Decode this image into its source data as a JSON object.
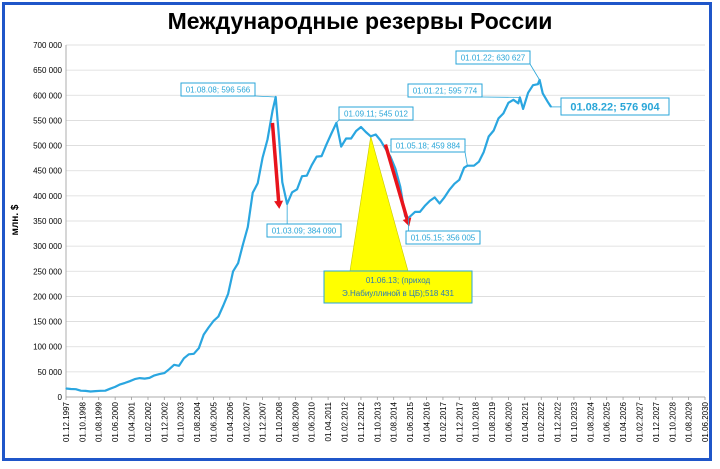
{
  "chart_data": {
    "type": "line",
    "title": "Международные резервы России",
    "ylabel": "млн. $",
    "xlabel": "",
    "ylim": [
      0,
      700000
    ],
    "grid": true,
    "y_ticks": [
      "0",
      "50 000",
      "100 000",
      "150 000",
      "200 000",
      "250 000",
      "300 000",
      "350 000",
      "400 000",
      "450 000",
      "500 000",
      "550 000",
      "600 000",
      "650 000",
      "700 000"
    ],
    "x_ticks": [
      "01.12.1997",
      "01.10.1998",
      "01.08.1999",
      "01.06.2000",
      "01.04.2001",
      "01.02.2002",
      "01.12.2002",
      "01.10.2003",
      "01.08.2004",
      "01.06.2005",
      "01.04.2006",
      "01.02.2007",
      "01.12.2007",
      "01.10.2008",
      "01.08.2009",
      "01.06.2010",
      "01.04.2011",
      "01.02.2012",
      "01.12.2012",
      "01.10.2013",
      "01.08.2014",
      "01.06.2015",
      "01.04.2016",
      "01.02.2017",
      "01.12.2017",
      "01.10.2018",
      "01.08.2019",
      "01.06.2020",
      "01.04.2021",
      "01.02.2022",
      "01.12.2022",
      "01.10.2023",
      "01.08.2024",
      "01.06.2025",
      "01.04.2026",
      "01.02.2027",
      "01.12.2027",
      "01.10.2028",
      "01.08.2029",
      "01.06.2030"
    ],
    "series": [
      {
        "color": "#2aa6e0",
        "points": [
          [
            "1997-12-01",
            17000
          ],
          [
            "1998-03-01",
            16000
          ],
          [
            "1998-06-01",
            15500
          ],
          [
            "1998-09-01",
            12500
          ],
          [
            "1998-12-01",
            12200
          ],
          [
            "1999-03-01",
            11000
          ],
          [
            "1999-06-01",
            11800
          ],
          [
            "1999-09-01",
            12300
          ],
          [
            "1999-12-01",
            12500
          ],
          [
            "2000-03-01",
            16500
          ],
          [
            "2000-06-01",
            20000
          ],
          [
            "2000-09-01",
            25000
          ],
          [
            "2000-12-01",
            28000
          ],
          [
            "2001-03-01",
            31500
          ],
          [
            "2001-06-01",
            35500
          ],
          [
            "2001-09-01",
            37500
          ],
          [
            "2001-12-01",
            36500
          ],
          [
            "2002-03-01",
            38000
          ],
          [
            "2002-06-01",
            43000
          ],
          [
            "2002-09-01",
            45500
          ],
          [
            "2002-12-01",
            47500
          ],
          [
            "2003-03-01",
            55000
          ],
          [
            "2003-06-01",
            64000
          ],
          [
            "2003-09-01",
            62000
          ],
          [
            "2003-12-01",
            77000
          ],
          [
            "2004-03-01",
            85000
          ],
          [
            "2004-06-01",
            86000
          ],
          [
            "2004-09-01",
            97000
          ],
          [
            "2004-12-01",
            124000
          ],
          [
            "2005-03-01",
            138000
          ],
          [
            "2005-06-01",
            151000
          ],
          [
            "2005-09-01",
            160000
          ],
          [
            "2005-12-01",
            182000
          ],
          [
            "2006-03-01",
            205000
          ],
          [
            "2006-06-01",
            250000
          ],
          [
            "2006-09-01",
            266000
          ],
          [
            "2006-12-01",
            303000
          ],
          [
            "2007-03-01",
            338000
          ],
          [
            "2007-06-01",
            406000
          ],
          [
            "2007-09-01",
            425000
          ],
          [
            "2007-12-01",
            476000
          ],
          [
            "2008-03-01",
            512000
          ],
          [
            "2008-06-01",
            569000
          ],
          [
            "2008-08-01",
            596566
          ],
          [
            "2008-10-01",
            516000
          ],
          [
            "2008-12-01",
            427000
          ],
          [
            "2009-03-01",
            384090
          ],
          [
            "2009-06-01",
            407000
          ],
          [
            "2009-09-01",
            413000
          ],
          [
            "2009-12-01",
            439000
          ],
          [
            "2010-03-01",
            440000
          ],
          [
            "2010-06-01",
            461000
          ],
          [
            "2010-09-01",
            478000
          ],
          [
            "2010-12-01",
            479000
          ],
          [
            "2011-03-01",
            502000
          ],
          [
            "2011-06-01",
            524000
          ],
          [
            "2011-09-01",
            545012
          ],
          [
            "2011-12-01",
            498000
          ],
          [
            "2012-03-01",
            514000
          ],
          [
            "2012-06-01",
            514000
          ],
          [
            "2012-09-01",
            529000
          ],
          [
            "2012-12-01",
            537000
          ],
          [
            "2013-03-01",
            527000
          ],
          [
            "2013-06-01",
            518431
          ],
          [
            "2013-09-01",
            522000
          ],
          [
            "2013-12-01",
            510000
          ],
          [
            "2014-03-01",
            494000
          ],
          [
            "2014-06-01",
            478000
          ],
          [
            "2014-09-01",
            454000
          ],
          [
            "2014-12-01",
            418000
          ],
          [
            "2015-03-01",
            360000
          ],
          [
            "2015-05-01",
            356005
          ],
          [
            "2015-09-01",
            368000
          ],
          [
            "2015-12-01",
            368000
          ],
          [
            "2016-03-01",
            380000
          ],
          [
            "2016-06-01",
            390000
          ],
          [
            "2016-09-01",
            397000
          ],
          [
            "2016-12-01",
            385000
          ],
          [
            "2017-03-01",
            397000
          ],
          [
            "2017-06-01",
            412000
          ],
          [
            "2017-09-01",
            424000
          ],
          [
            "2017-12-01",
            432000
          ],
          [
            "2018-03-01",
            456000
          ],
          [
            "2018-05-01",
            459884
          ],
          [
            "2018-09-01",
            460000
          ],
          [
            "2018-12-01",
            468000
          ],
          [
            "2019-03-01",
            487000
          ],
          [
            "2019-06-01",
            518000
          ],
          [
            "2019-09-01",
            530000
          ],
          [
            "2019-12-01",
            554000
          ],
          [
            "2020-03-01",
            564000
          ],
          [
            "2020-06-01",
            585000
          ],
          [
            "2020-09-01",
            591000
          ],
          [
            "2020-12-01",
            584000
          ],
          [
            "2021-01-01",
            595774
          ],
          [
            "2021-03-01",
            573000
          ],
          [
            "2021-06-01",
            605000
          ],
          [
            "2021-09-01",
            620000
          ],
          [
            "2021-12-01",
            622000
          ],
          [
            "2022-01-01",
            630627
          ],
          [
            "2022-03-01",
            604000
          ],
          [
            "2022-06-01",
            587000
          ],
          [
            "2022-08-01",
            576904
          ]
        ]
      }
    ],
    "annotations": [
      {
        "date": "2008-08-01",
        "value": 596566,
        "label": "01.08.08; 596 566"
      },
      {
        "date": "2009-03-01",
        "value": 384090,
        "label": "01.03.09; 384 090"
      },
      {
        "date": "2011-09-01",
        "value": 545012,
        "label": "01.09.11; 545 012"
      },
      {
        "date": "2015-05-01",
        "value": 356005,
        "label": "01.05.15; 356 005"
      },
      {
        "date": "2018-05-01",
        "value": 459884,
        "label": "01.05.18; 459 884"
      },
      {
        "date": "2021-01-01",
        "value": 595774,
        "label": "01.01.21; 595 774"
      },
      {
        "date": "2022-01-01",
        "value": 630627,
        "label": "01.01.22; 630 627"
      },
      {
        "date": "2022-08-01",
        "value": 576904,
        "label": "01.08.22; 576 904"
      }
    ],
    "callout": {
      "line1": "01.06.13; (приход",
      "line2": "Э.Набиуллиной в ЦБ);518 431",
      "date": "2013-06-01",
      "value": 518431,
      "fill": "#ffff00"
    },
    "arrows": [
      {
        "from": [
          "2008-06-01",
          545000
        ],
        "to": [
          "2008-10-01",
          380000
        ],
        "color": "#e8141c"
      },
      {
        "from": [
          "2014-03-01",
          502000
        ],
        "to": [
          "2015-05-01",
          345000
        ],
        "color": "#e8141c"
      }
    ]
  }
}
